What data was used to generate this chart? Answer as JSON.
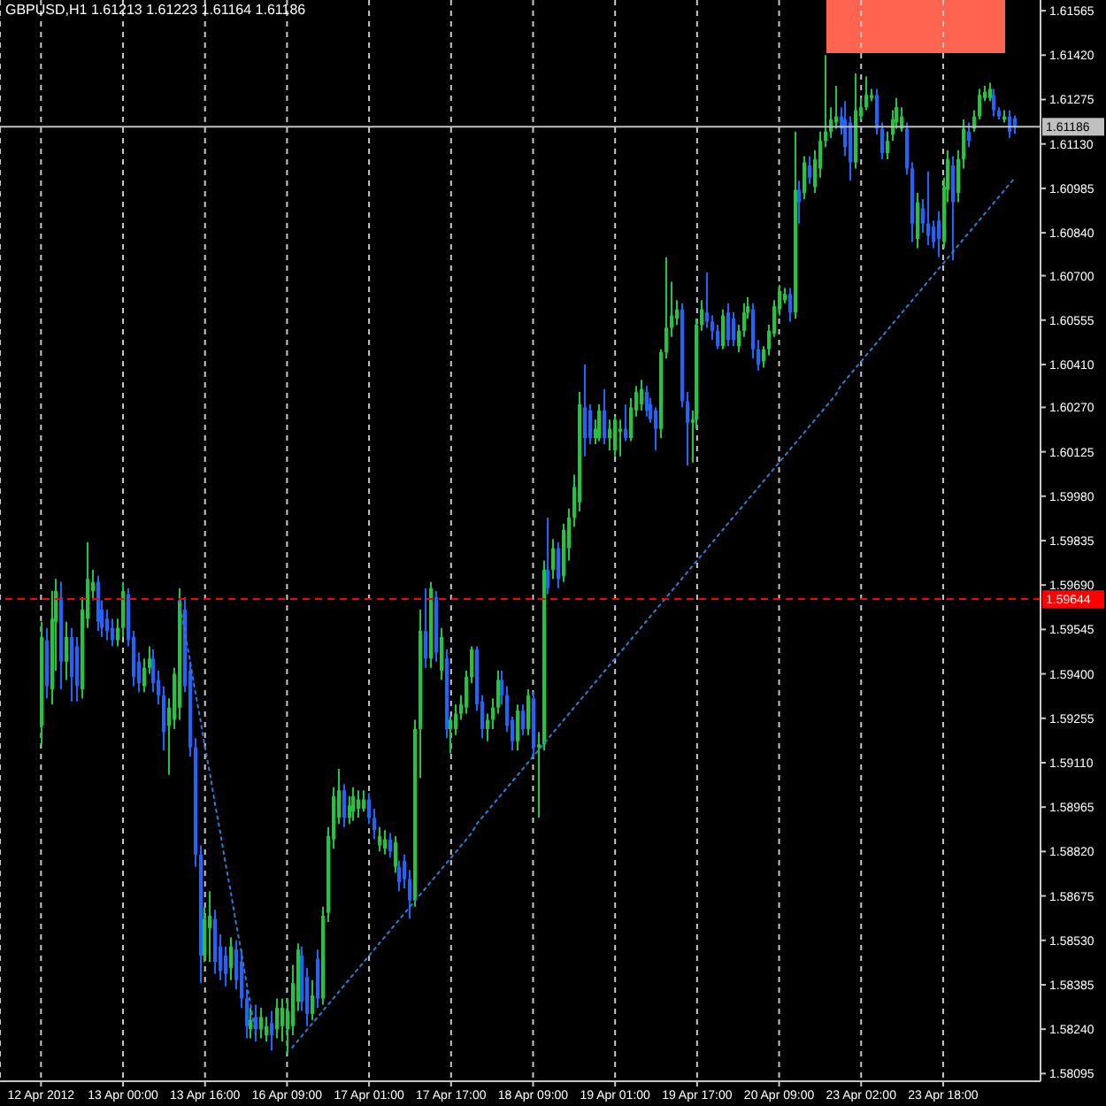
{
  "chart_data": {
    "type": "candlestick",
    "title": "GBPUSD,H1 1.61213 1.61223 1.61164 1.61186",
    "categories": [
      "12 Apr 2012",
      null,
      null,
      null,
      null,
      null,
      null,
      null,
      null,
      null,
      null,
      null,
      null,
      null,
      null,
      null,
      "13 Apr 00:00",
      null,
      null,
      null,
      null,
      null,
      null,
      null,
      null,
      null,
      null,
      null,
      null,
      null,
      null,
      null,
      "13 Apr 16:00",
      null,
      null,
      null,
      null,
      null,
      null,
      null,
      null,
      null,
      null,
      null,
      null,
      null,
      null,
      null,
      "16 Apr 09:00",
      null,
      null,
      null,
      null,
      null,
      null,
      null,
      null,
      null,
      null,
      null,
      null,
      null,
      null,
      null,
      "17 Apr 01:00",
      null,
      null,
      null,
      null,
      null,
      null,
      null,
      null,
      null,
      null,
      null,
      null,
      null,
      null,
      null,
      "17 Apr 17:00",
      null,
      null,
      null,
      null,
      null,
      null,
      null,
      null,
      null,
      null,
      null,
      null,
      null,
      null,
      null,
      "18 Apr 09:00",
      null,
      null,
      null,
      null,
      null,
      null,
      null,
      null,
      null,
      null,
      null,
      null,
      null,
      null,
      null,
      "19 Apr 01:00",
      null,
      null,
      null,
      null,
      null,
      null,
      null,
      null,
      null,
      null,
      null,
      null,
      null,
      null,
      null,
      "19 Apr 17:00",
      null,
      null,
      null,
      null,
      null,
      null,
      null,
      null,
      null,
      null,
      null,
      null,
      null,
      null,
      null,
      "20 Apr 09:00",
      null,
      null,
      null,
      null,
      null,
      null,
      null,
      null,
      null,
      null,
      null,
      null,
      null,
      null,
      null,
      "23 Apr 02:00",
      null,
      null,
      null,
      null,
      null,
      null,
      null,
      null,
      null,
      null,
      null,
      null,
      null,
      null,
      null,
      "23 Apr 18:00",
      null,
      null,
      null,
      null,
      null,
      null,
      null,
      null,
      null,
      null,
      null,
      null,
      null,
      null
    ],
    "ohlc": [
      [
        1.5923,
        1.5957,
        1.5917,
        1.5952
      ],
      [
        1.5951,
        1.5955,
        1.5932,
        1.5936
      ],
      [
        1.5935,
        1.5967,
        1.593,
        1.5958
      ],
      [
        1.5957,
        1.5971,
        1.5941,
        1.5967
      ],
      [
        1.5965,
        1.597,
        1.5935,
        1.5944
      ],
      [
        1.5944,
        1.5957,
        1.5938,
        1.5952
      ],
      [
        1.5952,
        1.5955,
        1.5931,
        1.5939
      ],
      [
        1.5949,
        1.5952,
        1.5931,
        1.5936
      ],
      [
        1.5935,
        1.5965,
        1.5932,
        1.5961
      ],
      [
        1.5958,
        1.5983,
        1.5955,
        1.5971
      ],
      [
        1.5967,
        1.5974,
        1.5964,
        1.597
      ],
      [
        1.597,
        1.5972,
        1.5954,
        1.5957
      ],
      [
        1.5961,
        1.5964,
        1.5952,
        1.5955
      ],
      [
        1.5958,
        1.5961,
        1.5951,
        1.5954
      ],
      [
        1.5955,
        1.5958,
        1.5949,
        1.5951
      ],
      [
        1.5951,
        1.5958,
        1.5949,
        1.5955
      ],
      [
        1.5955,
        1.597,
        1.5952,
        1.5967
      ],
      [
        1.5966,
        1.5968,
        1.5949,
        1.5951
      ],
      [
        1.5952,
        1.5954,
        1.5936,
        1.5939
      ],
      [
        1.5944,
        1.5947,
        1.5934,
        1.5937
      ],
      [
        1.5936,
        1.5945,
        1.5934,
        1.5942
      ],
      [
        1.5942,
        1.5949,
        1.594,
        1.5945
      ],
      [
        1.5945,
        1.5948,
        1.5934,
        1.5937
      ],
      [
        1.5938,
        1.5941,
        1.593,
        1.5933
      ],
      [
        1.5933,
        1.5936,
        1.5915,
        1.5921
      ],
      [
        1.5923,
        1.5932,
        1.5907,
        1.5929
      ],
      [
        1.5925,
        1.5942,
        1.5922,
        1.594
      ],
      [
        1.5929,
        1.5968,
        1.5925,
        1.5964
      ],
      [
        1.5961,
        1.5965,
        1.5934,
        1.5936
      ],
      [
        1.5941,
        1.5944,
        1.5913,
        1.5916
      ],
      [
        1.5916,
        1.5919,
        1.5877,
        1.5881
      ],
      [
        1.5881,
        1.5884,
        1.5839,
        1.5848
      ],
      [
        1.5848,
        1.5864,
        1.5846,
        1.586
      ],
      [
        1.5857,
        1.5869,
        1.5846,
        1.5861
      ],
      [
        1.586,
        1.5863,
        1.5842,
        1.5846
      ],
      [
        1.5851,
        1.5855,
        1.584,
        1.5843
      ],
      [
        1.5848,
        1.5851,
        1.5838,
        1.5842
      ],
      [
        1.5844,
        1.5854,
        1.584,
        1.5851
      ],
      [
        1.585,
        1.5853,
        1.5837,
        1.584
      ],
      [
        1.5846,
        1.585,
        1.5831,
        1.5834
      ],
      [
        1.5834,
        1.5837,
        1.5821,
        1.5825
      ],
      [
        1.5824,
        1.5831,
        1.5821,
        1.5827
      ],
      [
        1.5828,
        1.5832,
        1.582,
        1.5824
      ],
      [
        1.5824,
        1.5831,
        1.5821,
        1.5828
      ],
      [
        1.5822,
        1.5828,
        1.582,
        1.5825
      ],
      [
        1.5826,
        1.583,
        1.5817,
        1.5822
      ],
      [
        1.5824,
        1.5834,
        1.5821,
        1.5831
      ],
      [
        1.5825,
        1.5834,
        1.582,
        1.5831
      ],
      [
        1.5824,
        1.5834,
        1.5816,
        1.583
      ],
      [
        1.5825,
        1.5845,
        1.5822,
        1.5839
      ],
      [
        1.5833,
        1.5852,
        1.583,
        1.585
      ],
      [
        1.5848,
        1.5851,
        1.583,
        1.5833
      ],
      [
        1.5841,
        1.5844,
        1.5825,
        1.5829
      ],
      [
        1.5829,
        1.584,
        1.5827,
        1.5835
      ],
      [
        1.5847,
        1.585,
        1.5831,
        1.5834
      ],
      [
        1.5834,
        1.5864,
        1.5832,
        1.5861
      ],
      [
        1.5862,
        1.589,
        1.5859,
        1.5887
      ],
      [
        1.5886,
        1.5903,
        1.5883,
        1.59
      ],
      [
        1.5893,
        1.5909,
        1.5891,
        1.5902
      ],
      [
        1.5902,
        1.5904,
        1.589,
        1.5893
      ],
      [
        1.5893,
        1.59,
        1.5891,
        1.5897
      ],
      [
        1.5895,
        1.5903,
        1.5892,
        1.59
      ],
      [
        1.5896,
        1.5902,
        1.5893,
        1.5899
      ],
      [
        1.5896,
        1.5902,
        1.5895,
        1.5899
      ],
      [
        1.5899,
        1.5901,
        1.5891,
        1.5893
      ],
      [
        1.5893,
        1.5896,
        1.5886,
        1.5889
      ],
      [
        1.5884,
        1.589,
        1.5882,
        1.5887
      ],
      [
        1.5883,
        1.5889,
        1.5881,
        1.5886
      ],
      [
        1.5886,
        1.5888,
        1.588,
        1.5882
      ],
      [
        1.5877,
        1.5887,
        1.5875,
        1.5885
      ],
      [
        1.5877,
        1.5879,
        1.5869,
        1.5872
      ],
      [
        1.5879,
        1.5881,
        1.587,
        1.5873
      ],
      [
        1.5873,
        1.5876,
        1.586,
        1.5866
      ],
      [
        1.5866,
        1.5925,
        1.5864,
        1.5922
      ],
      [
        1.5922,
        1.5961,
        1.5906,
        1.5954
      ],
      [
        1.5954,
        1.5968,
        1.5942,
        1.5945
      ],
      [
        1.5945,
        1.597,
        1.5942,
        1.5968
      ],
      [
        1.5965,
        1.5967,
        1.5944,
        1.5947
      ],
      [
        1.5941,
        1.5955,
        1.5938,
        1.5952
      ],
      [
        1.5945,
        1.5948,
        1.5919,
        1.5922
      ],
      [
        1.5922,
        1.5926,
        1.5914,
        1.5925
      ],
      [
        1.5922,
        1.593,
        1.592,
        1.5927
      ],
      [
        1.5927,
        1.5933,
        1.5925,
        1.593
      ],
      [
        1.5929,
        1.5941,
        1.5927,
        1.5939
      ],
      [
        1.5939,
        1.5949,
        1.5937,
        1.5948
      ],
      [
        1.5948,
        1.5949,
        1.5928,
        1.593
      ],
      [
        1.5931,
        1.5933,
        1.5919,
        1.5922
      ],
      [
        1.5922,
        1.5927,
        1.5918,
        1.5925
      ],
      [
        1.5925,
        1.5932,
        1.5922,
        1.5929
      ],
      [
        1.5929,
        1.5941,
        1.5927,
        1.5938
      ],
      [
        1.5938,
        1.5941,
        1.593,
        1.5933
      ],
      [
        1.5933,
        1.5936,
        1.5921,
        1.5923
      ],
      [
        1.5925,
        1.5926,
        1.5915,
        1.5918
      ],
      [
        1.5918,
        1.593,
        1.5915,
        1.5928
      ],
      [
        1.5928,
        1.593,
        1.592,
        1.5922
      ],
      [
        1.5922,
        1.5935,
        1.592,
        1.5933
      ],
      [
        1.5932,
        1.5934,
        1.5913,
        1.5916
      ],
      [
        1.5916,
        1.5921,
        1.5893,
        1.5917
      ],
      [
        1.5917,
        1.5977,
        1.5915,
        1.5974
      ],
      [
        1.5974,
        1.5991,
        1.5966,
        1.5968
      ],
      [
        1.5974,
        1.5984,
        1.5971,
        1.5981
      ],
      [
        1.5981,
        1.5983,
        1.5968,
        1.5971
      ],
      [
        1.5972,
        1.5989,
        1.597,
        1.5987
      ],
      [
        1.5981,
        1.5994,
        1.5977,
        1.5991
      ],
      [
        1.5991,
        1.6005,
        1.5988,
        1.6001
      ],
      [
        1.5996,
        1.6032,
        1.5993,
        1.6028
      ],
      [
        1.6027,
        1.6041,
        1.6011,
        1.6017
      ],
      [
        1.6026,
        1.6028,
        1.6015,
        1.6017
      ],
      [
        1.6017,
        1.6023,
        1.6015,
        1.602
      ],
      [
        1.6017,
        1.6028,
        1.6016,
        1.6026
      ],
      [
        1.6026,
        1.6033,
        1.6015,
        1.6017
      ],
      [
        1.6017,
        1.6023,
        1.6013,
        1.602
      ],
      [
        1.6013,
        1.6024,
        1.6011,
        1.6023
      ],
      [
        1.6019,
        1.6023,
        1.6011,
        1.602
      ],
      [
        1.602,
        1.6028,
        1.6016,
        1.6017
      ],
      [
        1.6017,
        1.603,
        1.6016,
        1.6027
      ],
      [
        1.6026,
        1.6034,
        1.6024,
        1.6032
      ],
      [
        1.6028,
        1.6036,
        1.6026,
        1.6033
      ],
      [
        1.6032,
        1.6034,
        1.6024,
        1.6026
      ],
      [
        1.6028,
        1.603,
        1.6022,
        1.6023
      ],
      [
        1.6026,
        1.6027,
        1.6013,
        1.602
      ],
      [
        1.602,
        1.6046,
        1.6017,
        1.6045
      ],
      [
        1.6045,
        1.6076,
        1.6043,
        1.6053
      ],
      [
        1.6053,
        1.6068,
        1.605,
        1.6057
      ],
      [
        1.6056,
        1.6062,
        1.6054,
        1.6059
      ],
      [
        1.6059,
        1.6061,
        1.6027,
        1.6029
      ],
      [
        1.6029,
        1.6032,
        1.6008,
        1.6022
      ],
      [
        1.6022,
        1.6026,
        1.6009,
        1.6023
      ],
      [
        1.6023,
        1.6056,
        1.602,
        1.6054
      ],
      [
        1.6054,
        1.6062,
        1.6052,
        1.6059
      ],
      [
        1.6058,
        1.6071,
        1.6053,
        1.6055
      ],
      [
        1.6055,
        1.6057,
        1.6049,
        1.6052
      ],
      [
        1.6052,
        1.6054,
        1.6046,
        1.6047
      ],
      [
        1.6047,
        1.6059,
        1.6046,
        1.6057
      ],
      [
        1.6058,
        1.6061,
        1.6047,
        1.6049
      ],
      [
        1.6056,
        1.6058,
        1.6047,
        1.6049
      ],
      [
        1.6047,
        1.6054,
        1.6045,
        1.6052
      ],
      [
        1.6052,
        1.6061,
        1.605,
        1.6058
      ],
      [
        1.6058,
        1.6063,
        1.6056,
        1.606
      ],
      [
        1.6059,
        1.6061,
        1.6043,
        1.6046
      ],
      [
        1.6046,
        1.6049,
        1.6039,
        1.6041
      ],
      [
        1.6042,
        1.6047,
        1.604,
        1.6046
      ],
      [
        1.6046,
        1.6054,
        1.6044,
        1.6052
      ],
      [
        1.6051,
        1.6062,
        1.605,
        1.606
      ],
      [
        1.6059,
        1.6067,
        1.6057,
        1.6065
      ],
      [
        1.6062,
        1.6066,
        1.6061,
        1.6064
      ],
      [
        1.6064,
        1.6066,
        1.6055,
        1.6058
      ],
      [
        1.6058,
        1.6117,
        1.6056,
        1.6098
      ],
      [
        1.6098,
        1.6101,
        1.6087,
        1.6094
      ],
      [
        1.6097,
        1.6109,
        1.6095,
        1.6107
      ],
      [
        1.6106,
        1.6109,
        1.61,
        1.6102
      ],
      [
        1.6099,
        1.6111,
        1.6097,
        1.6108
      ],
      [
        1.6105,
        1.6117,
        1.6102,
        1.6114
      ],
      [
        1.6114,
        1.6142,
        1.6112,
        1.6117
      ],
      [
        1.6117,
        1.6125,
        1.6115,
        1.6121
      ],
      [
        1.612,
        1.6132,
        1.6118,
        1.6122
      ],
      [
        1.6122,
        1.6125,
        1.6116,
        1.6118
      ],
      [
        1.6121,
        1.6127,
        1.6109,
        1.6112
      ],
      [
        1.612,
        1.6122,
        1.6101,
        1.6107
      ],
      [
        1.6107,
        1.6136,
        1.6105,
        1.6124
      ],
      [
        1.6122,
        1.6128,
        1.6121,
        1.6125
      ],
      [
        1.6125,
        1.6135,
        1.6124,
        1.6129
      ],
      [
        1.6128,
        1.6131,
        1.6127,
        1.6129
      ],
      [
        1.6129,
        1.6131,
        1.6116,
        1.6118
      ],
      [
        1.6118,
        1.612,
        1.6108,
        1.611
      ],
      [
        1.611,
        1.6117,
        1.6108,
        1.6114
      ],
      [
        1.6116,
        1.6124,
        1.6114,
        1.6121
      ],
      [
        1.612,
        1.6128,
        1.6118,
        1.6125
      ],
      [
        1.6118,
        1.6125,
        1.6117,
        1.6122
      ],
      [
        1.6118,
        1.612,
        1.6103,
        1.6105
      ],
      [
        1.6105,
        1.6107,
        1.6081,
        1.6087
      ],
      [
        1.6082,
        1.6097,
        1.6079,
        1.6094
      ],
      [
        1.6092,
        1.6095,
        1.6084,
        1.6087
      ],
      [
        1.6087,
        1.6104,
        1.608,
        1.6083
      ],
      [
        1.6086,
        1.6088,
        1.6079,
        1.6081
      ],
      [
        1.6088,
        1.6091,
        1.6076,
        1.6082
      ],
      [
        1.6081,
        1.6102,
        1.6079,
        1.6099
      ],
      [
        1.6098,
        1.6111,
        1.6094,
        1.6108
      ],
      [
        1.6106,
        1.6109,
        1.6075,
        1.6094
      ],
      [
        1.6097,
        1.6111,
        1.6094,
        1.6108
      ],
      [
        1.6108,
        1.6121,
        1.6105,
        1.6118
      ],
      [
        1.6117,
        1.612,
        1.6112,
        1.6114
      ],
      [
        1.6118,
        1.6124,
        1.6117,
        1.6122
      ],
      [
        1.6122,
        1.6131,
        1.6121,
        1.6129
      ],
      [
        1.6128,
        1.6132,
        1.6127,
        1.613
      ],
      [
        1.6128,
        1.6133,
        1.6127,
        1.6131
      ],
      [
        1.6129,
        1.6131,
        1.6122,
        1.6124
      ],
      [
        1.6124,
        1.6125,
        1.6121,
        1.6122
      ],
      [
        1.6121,
        1.6124,
        1.612,
        1.6122
      ],
      [
        1.6122,
        1.6124,
        1.6115,
        1.6117
      ],
      [
        1.61213,
        1.61223,
        1.61164,
        1.61186
      ]
    ],
    "colors": [
      "#1ec83c",
      "#1e64ff",
      "#1ec83c",
      "#1ec83c",
      "#1e64ff",
      "#1ec83c",
      "#1e64ff",
      "#1e64ff",
      "#1ec83c",
      "#1ec83c",
      "#1ec83c",
      "#1e64ff",
      "#1e64ff",
      "#1e64ff",
      "#1e64ff",
      "#1ec83c",
      "#1ec83c",
      "#1e64ff",
      "#1e64ff",
      "#1e64ff",
      "#1ec83c",
      "#1ec83c",
      "#1e64ff",
      "#1e64ff",
      "#1e64ff",
      "#1ec83c",
      "#1ec83c",
      "#1ec83c",
      "#1e64ff",
      "#1e64ff",
      "#1e64ff",
      "#1e64ff",
      "#1ec83c",
      "#1ec83c",
      "#1e64ff",
      "#1e64ff",
      "#1e64ff",
      "#1ec83c",
      "#1e64ff",
      "#1e64ff",
      "#1e64ff",
      "#1ec83c",
      "#1e64ff",
      "#1ec83c",
      "#1ec83c",
      "#1e64ff",
      "#1ec83c",
      "#1ec83c",
      "#1ec83c",
      "#1ec83c",
      "#1ec83c",
      "#1e64ff",
      "#1e64ff",
      "#1ec83c",
      "#1e64ff",
      "#1ec83c",
      "#1ec83c",
      "#1ec83c",
      "#1ec83c",
      "#1e64ff",
      "#1ec83c",
      "#1ec83c",
      "#1ec83c",
      "#1ec83c",
      "#1e64ff",
      "#1e64ff",
      "#1ec83c",
      "#1ec83c",
      "#1e64ff",
      "#1ec83c",
      "#1e64ff",
      "#1e64ff",
      "#1e64ff",
      "#1ec83c",
      "#1ec83c",
      "#1e64ff",
      "#1ec83c",
      "#1e64ff",
      "#1ec83c",
      "#1e64ff",
      "#1ec83c",
      "#1ec83c",
      "#1ec83c",
      "#1ec83c",
      "#1ec83c",
      "#1e64ff",
      "#1e64ff",
      "#1ec83c",
      "#1ec83c",
      "#1ec83c",
      "#1e64ff",
      "#1e64ff",
      "#1e64ff",
      "#1ec83c",
      "#1e64ff",
      "#1ec83c",
      "#1e64ff",
      "#1ec83c",
      "#1ec83c",
      "#1e64ff",
      "#1ec83c",
      "#1e64ff",
      "#1ec83c",
      "#1ec83c",
      "#1ec83c",
      "#1ec83c",
      "#1e64ff",
      "#1e64ff",
      "#1ec83c",
      "#1ec83c",
      "#1e64ff",
      "#1ec83c",
      "#1ec83c",
      "#1ec83c",
      "#1e64ff",
      "#1ec83c",
      "#1ec83c",
      "#1ec83c",
      "#1e64ff",
      "#1e64ff",
      "#1e64ff",
      "#1ec83c",
      "#1ec83c",
      "#1ec83c",
      "#1ec83c",
      "#1e64ff",
      "#1e64ff",
      "#1ec83c",
      "#1ec83c",
      "#1ec83c",
      "#1e64ff",
      "#1e64ff",
      "#1e64ff",
      "#1ec83c",
      "#1e64ff",
      "#1e64ff",
      "#1ec83c",
      "#1ec83c",
      "#1ec83c",
      "#1e64ff",
      "#1e64ff",
      "#1ec83c",
      "#1ec83c",
      "#1ec83c",
      "#1ec83c",
      "#1ec83c",
      "#1e64ff",
      "#1ec83c",
      "#1e64ff",
      "#1ec83c",
      "#1e64ff",
      "#1ec83c",
      "#1ec83c",
      "#1ec83c",
      "#1ec83c",
      "#1ec83c",
      "#1e64ff",
      "#1e64ff",
      "#1e64ff",
      "#1ec83c",
      "#1ec83c",
      "#1ec83c",
      "#1ec83c",
      "#1e64ff",
      "#1e64ff",
      "#1ec83c",
      "#1ec83c",
      "#1ec83c",
      "#1ec83c",
      "#1e64ff",
      "#1e64ff",
      "#1ec83c",
      "#1e64ff",
      "#1e64ff",
      "#1e64ff",
      "#1e64ff",
      "#1ec83c",
      "#1ec83c",
      "#1e64ff",
      "#1ec83c",
      "#1ec83c",
      "#1e64ff",
      "#1ec83c",
      "#1ec83c",
      "#1ec83c",
      "#1ec83c",
      "#1e64ff",
      "#1e64ff",
      "#1ec83c",
      "#1e64ff",
      "#1e64ff"
    ],
    "series": [
      {
        "type": "line",
        "color": "#2a7fd4",
        "line_style": "dotted",
        "values": [
          null,
          null,
          null,
          null,
          null,
          null,
          null,
          null,
          null,
          null,
          null,
          null,
          null,
          null,
          null,
          null,
          null,
          null,
          null,
          null,
          null,
          null,
          null,
          null,
          null,
          null,
          null,
          1.5964,
          1.5954,
          1.5945,
          1.5935,
          1.5926,
          1.5916,
          1.5907,
          1.5897,
          1.5888,
          1.5878,
          1.5869,
          1.5859,
          1.585,
          1.584,
          1.5831,
          1.5821,
          null,
          null,
          null,
          null,
          null,
          null,
          null,
          null,
          null,
          null,
          null,
          null,
          null,
          null,
          null,
          null,
          null,
          null,
          null,
          null,
          null,
          null,
          null,
          null,
          null,
          null,
          null,
          null,
          null,
          null,
          null,
          null,
          null,
          null,
          null,
          null,
          null,
          null,
          null,
          null,
          null,
          null,
          null,
          null,
          null,
          null,
          null,
          null,
          null,
          null,
          null,
          null,
          null,
          null,
          null,
          null,
          null,
          null,
          null,
          null,
          null,
          null,
          null,
          null,
          null,
          null,
          null,
          null,
          null,
          null,
          null,
          null,
          null,
          null,
          null,
          null,
          null,
          null,
          null,
          null,
          null,
          null,
          null,
          null,
          null,
          null,
          null,
          null,
          null,
          null,
          null,
          null,
          null,
          null,
          null,
          null,
          null,
          null,
          null,
          null,
          null,
          null,
          null,
          null,
          null,
          null,
          null,
          null,
          null,
          null,
          null,
          null,
          null,
          null,
          null,
          null,
          null,
          null,
          null,
          null,
          null,
          null,
          null,
          null,
          null,
          null,
          null,
          null,
          null,
          null,
          null,
          null,
          null,
          null,
          null,
          null,
          null,
          null,
          null,
          null,
          null,
          null,
          null,
          null,
          null,
          null,
          null,
          null
        ]
      },
      {
        "type": "line",
        "color": "#2a7fd4",
        "line_style": "dotted",
        "values": [
          null,
          null,
          null,
          null,
          null,
          null,
          null,
          null,
          null,
          null,
          null,
          null,
          null,
          null,
          null,
          null,
          null,
          null,
          null,
          null,
          null,
          null,
          null,
          null,
          null,
          null,
          null,
          null,
          null,
          null,
          null,
          null,
          null,
          null,
          null,
          null,
          null,
          null,
          null,
          null,
          null,
          null,
          null,
          null,
          null,
          null,
          null,
          null,
          null,
          1.5818,
          1.582,
          1.5822,
          1.5824,
          1.5826,
          1.5828,
          1.583,
          1.5832,
          1.5834,
          1.5836,
          1.5838,
          1.584,
          1.5842,
          1.5844,
          1.5846,
          1.5848,
          1.585,
          1.5852,
          1.5854,
          1.5856,
          1.5858,
          1.586,
          1.5862,
          1.5864,
          1.5866,
          1.5868,
          1.587,
          1.5872,
          1.5874,
          1.5876,
          1.5878,
          1.588,
          1.5882,
          1.5884,
          1.5886,
          1.5888,
          1.5891,
          1.5893,
          1.5895,
          1.5897,
          1.5899,
          1.5901,
          1.5903,
          1.5905,
          1.5907,
          1.5909,
          1.5911,
          1.5913,
          1.5915,
          1.5917,
          1.5919,
          1.5921,
          1.5923,
          1.5925,
          1.5927,
          1.5929,
          1.5931,
          1.5933,
          1.5935,
          1.5937,
          1.5939,
          1.5941,
          1.5943,
          1.5945,
          1.5947,
          1.5949,
          1.5951,
          1.5953,
          1.5955,
          1.5957,
          1.5959,
          1.5961,
          1.5963,
          1.5965,
          1.5967,
          1.5969,
          1.5971,
          1.5973,
          1.5975,
          1.5977,
          1.5979,
          1.5981,
          1.5983,
          1.5985,
          1.5987,
          1.5989,
          1.5991,
          1.5993,
          1.5995,
          1.5997,
          1.5999,
          1.6001,
          1.6003,
          1.6005,
          1.6007,
          1.6009,
          1.6011,
          1.6013,
          1.6015,
          1.6017,
          1.6019,
          1.6021,
          1.6023,
          1.6025,
          1.6027,
          1.6029,
          1.6031,
          1.6034,
          1.6036,
          1.6038,
          1.604,
          1.6042,
          1.6044,
          1.6046,
          1.6048,
          1.605,
          1.6052,
          1.6054,
          1.6056,
          1.6058,
          1.606,
          1.6062,
          1.6064,
          1.6066,
          1.6068,
          1.607,
          1.6072,
          1.6074,
          1.6076,
          1.6078,
          1.608,
          1.6082,
          1.6084,
          1.6086,
          1.6088,
          1.609,
          1.6092,
          1.6094,
          1.6096,
          1.6098,
          1.61,
          1.6102
        ]
      }
    ],
    "ylim": [
      1.5807,
      1.616
    ],
    "yticks": [
      1.58095,
      {
        "value": 1.5824,
        "label": "1.58240"
      },
      1.58385,
      {
        "value": 1.5853,
        "label": "1.58530"
      },
      1.58675,
      {
        "value": 1.5882,
        "label": "1.58820"
      },
      1.58965,
      {
        "value": 1.5911,
        "label": "1.59110"
      },
      1.59255,
      {
        "value": 1.594,
        "label": "1.59400"
      },
      1.59545,
      {
        "value": 1.5969,
        "label": "1.59690"
      },
      1.59835,
      {
        "value": 1.5998,
        "label": "1.59980"
      },
      1.60125,
      {
        "value": 1.6027,
        "label": "1.60270"
      },
      {
        "value": 1.6041,
        "label": "1.60410"
      },
      1.60555,
      {
        "value": 1.607,
        "label": "1.60700"
      },
      {
        "value": 1.6084,
        "label": "1.60840"
      },
      1.60985,
      {
        "value": 1.6113,
        "label": "1.61130"
      },
      1.61275,
      {
        "value": 1.6142,
        "label": "1.61420"
      },
      1.61565
    ],
    "ref_lines": [
      {
        "axis": "y",
        "value": 1.61186,
        "label": "1.61186",
        "color": "#c0c0c0",
        "line_style": "solid"
      },
      {
        "axis": "y",
        "value": 1.59644,
        "label": "1.59644",
        "color": "#ff0000",
        "line_style": "dashed"
      }
    ],
    "grid": "x"
  }
}
